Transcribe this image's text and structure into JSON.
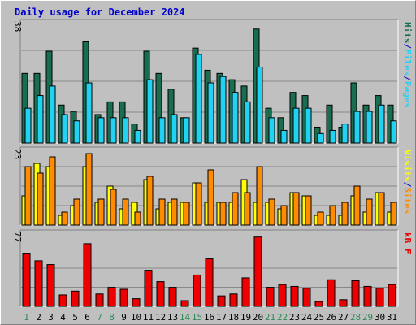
{
  "title": "Daily usage for December 2024",
  "colors": {
    "pages": "#1a6e50",
    "files": "#22d2f2",
    "hits": "#1a6e50",
    "visits": "#ffff00",
    "sites": "#ff8c00",
    "kbf": "#ee0000",
    "weekend_label": "#2e8b57",
    "weekday_label": "#000000",
    "title": "#0000cc",
    "plot_bg": "#c0c0c0",
    "grid": "#888888"
  },
  "chart_data": [
    {
      "type": "bar",
      "panel": "hits_files_pages",
      "ylabel_parts": [
        "Pages",
        "/",
        "Files",
        "/",
        "Hits"
      ],
      "ymax_label": "38",
      "ylim": [
        0,
        38
      ],
      "grid": true,
      "categories": [
        "1",
        "2",
        "3",
        "4",
        "5",
        "6",
        "7",
        "8",
        "9",
        "10",
        "11",
        "12",
        "13",
        "14",
        "15",
        "16",
        "17",
        "18",
        "19",
        "20",
        "21",
        "22",
        "23",
        "24",
        "25",
        "26",
        "27",
        "28",
        "29",
        "30",
        "31"
      ],
      "series": [
        {
          "name": "Hits",
          "values": [
            22,
            22,
            29,
            12,
            10,
            32,
            9,
            13,
            13,
            6,
            29,
            22,
            17,
            8,
            30,
            23,
            22,
            20,
            18,
            36,
            11,
            8,
            16,
            15,
            5,
            12,
            5,
            19,
            12,
            15,
            12
          ]
        },
        {
          "name": "Files",
          "values": [
            11,
            15,
            18,
            9,
            7,
            19,
            8,
            8,
            8,
            4,
            20,
            8,
            9,
            8,
            28,
            19,
            21,
            16,
            13,
            24,
            8,
            4,
            11,
            11,
            3,
            4,
            6,
            10,
            10,
            12,
            7
          ]
        }
      ]
    },
    {
      "type": "bar",
      "panel": "visits_sites",
      "ylabel_parts": [
        "Sites",
        "/",
        "Visits"
      ],
      "ymax_label": "23",
      "ylim": [
        0,
        23
      ],
      "grid": true,
      "categories": [
        "1",
        "2",
        "3",
        "4",
        "5",
        "6",
        "7",
        "8",
        "9",
        "10",
        "11",
        "12",
        "13",
        "14",
        "15",
        "16",
        "17",
        "18",
        "19",
        "20",
        "21",
        "22",
        "23",
        "24",
        "25",
        "26",
        "27",
        "28",
        "29",
        "30",
        "31"
      ],
      "series": [
        {
          "name": "Visits",
          "values": [
            9,
            19,
            18,
            3,
            6,
            18,
            7,
            12,
            5,
            7,
            14,
            5,
            7,
            7,
            13,
            7,
            7,
            7,
            14,
            7,
            7,
            5,
            10,
            9,
            3,
            3,
            3,
            9,
            4,
            10,
            4
          ]
        },
        {
          "name": "Sites",
          "values": [
            18,
            16,
            21,
            4,
            8,
            22,
            8,
            11,
            8,
            4,
            15,
            8,
            8,
            7,
            13,
            17,
            7,
            10,
            10,
            18,
            8,
            6,
            10,
            9,
            4,
            6,
            7,
            12,
            8,
            10,
            7
          ]
        }
      ]
    },
    {
      "type": "bar",
      "panel": "kbf",
      "ylabel_parts": [
        "kB F"
      ],
      "ymax_label": "77",
      "ylim": [
        0,
        77
      ],
      "grid": true,
      "categories": [
        "1",
        "2",
        "3",
        "4",
        "5",
        "6",
        "7",
        "8",
        "9",
        "10",
        "11",
        "12",
        "13",
        "14",
        "15",
        "16",
        "17",
        "18",
        "19",
        "20",
        "21",
        "22",
        "23",
        "24",
        "25",
        "26",
        "27",
        "28",
        "29",
        "30",
        "31"
      ],
      "series": [
        {
          "name": "kB F",
          "values": [
            56,
            48,
            44,
            12,
            16,
            66,
            13,
            20,
            18,
            8,
            38,
            26,
            20,
            6,
            33,
            50,
            11,
            13,
            30,
            73,
            20,
            23,
            21,
            19,
            5,
            28,
            7,
            27,
            21,
            19,
            23
          ]
        }
      ]
    }
  ],
  "x_axis": {
    "labels": [
      "1",
      "2",
      "3",
      "4",
      "5",
      "6",
      "7",
      "8",
      "9",
      "10",
      "11",
      "12",
      "13",
      "14",
      "15",
      "16",
      "17",
      "18",
      "19",
      "20",
      "21",
      "22",
      "23",
      "24",
      "25",
      "26",
      "27",
      "28",
      "29",
      "30",
      "31"
    ],
    "weekend_days": [
      "1",
      "7",
      "8",
      "14",
      "15",
      "21",
      "22",
      "28",
      "29"
    ]
  }
}
